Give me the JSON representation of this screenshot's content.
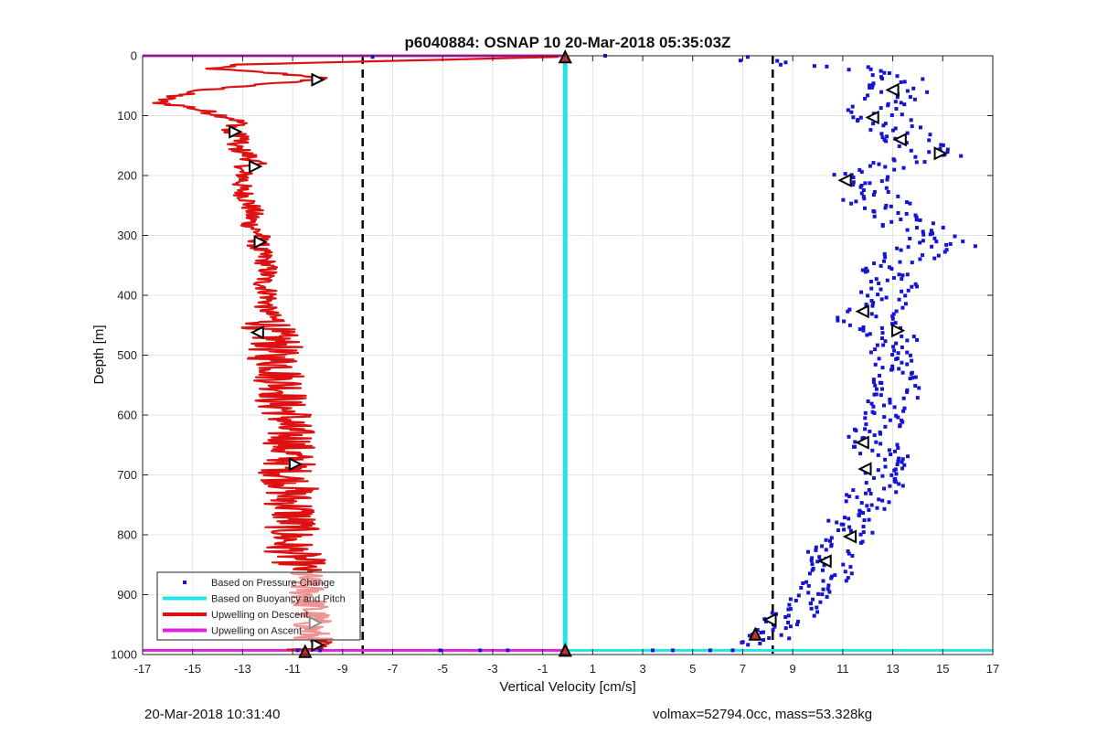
{
  "figure": {
    "footer_left": "20-Mar-2018 10:31:40",
    "footer_right": "volmax=52794.0cc, mass=53.328kg"
  },
  "chart_data": {
    "type": "scatter",
    "title": "p6040884: OSNAP 10 20-Mar-2018 05:35:03Z",
    "xlabel": "Vertical Velocity [cm/s]",
    "ylabel": "Depth [m]",
    "xlim": [
      -17,
      17
    ],
    "ylim": [
      0,
      1000
    ],
    "y_reversed": true,
    "grid": true,
    "legend_placement": "bottom-left",
    "x_ticks": [
      -17,
      -15,
      -13,
      -11,
      -9,
      -7,
      -5,
      -3,
      -1,
      1,
      3,
      5,
      7,
      9,
      11,
      13,
      15,
      17
    ],
    "y_ticks": [
      0,
      100,
      200,
      300,
      400,
      500,
      600,
      700,
      800,
      900,
      1000
    ],
    "colors": {
      "pressure": "#1414d2",
      "buoyancy": "#22e5e5",
      "descent": "#dd1111",
      "ascent": "#dd22dd",
      "grid": "#e3e3e3"
    },
    "legend": [
      {
        "label": "Based on Pressure Change",
        "style": "dot",
        "color": "#1414d2"
      },
      {
        "label": "Based on Buoyancy and Pitch",
        "style": "line",
        "color": "#22e5e5"
      },
      {
        "label": "Upwelling on Descent",
        "style": "line",
        "color": "#dd1111"
      },
      {
        "label": "Upwelling on Ascent",
        "style": "line",
        "color": "#dd22dd"
      }
    ],
    "vlines_dashed": [
      -8.2,
      8.2
    ],
    "buoyancy_x": -0.1,
    "horizontal_lines": [
      {
        "series": "ascent",
        "y": 0,
        "x": [
          -17,
          -0.1
        ]
      },
      {
        "series": "ascent",
        "y": 993,
        "x": [
          -17,
          -0.1
        ]
      },
      {
        "series": "buoyancy",
        "y": 993,
        "x": [
          -0.1,
          17
        ]
      }
    ],
    "descent_profile": {
      "depth": [
        2,
        10,
        15,
        22,
        30,
        36,
        42,
        50,
        60,
        70,
        78,
        85,
        95,
        105,
        115,
        125,
        135,
        150,
        165,
        180,
        190,
        200,
        220,
        240,
        260,
        280,
        300,
        320,
        340,
        360,
        380,
        400,
        420,
        440,
        460,
        480,
        500,
        520,
        540,
        560,
        580,
        600,
        620,
        640,
        660,
        680,
        700,
        720,
        740,
        760,
        780,
        800,
        820,
        840,
        860,
        880,
        900,
        920,
        940,
        960,
        980,
        993
      ],
      "velocity": [
        -0.4,
        -8.5,
        -13.5,
        -14.2,
        -11.5,
        -9.8,
        -10.4,
        -13.0,
        -15.0,
        -16.0,
        -16.4,
        -15.2,
        -14.3,
        -13.3,
        -13.1,
        -13.7,
        -12.9,
        -13.4,
        -12.8,
        -12.5,
        -13.2,
        -12.9,
        -13.1,
        -12.8,
        -12.6,
        -12.7,
        -12.3,
        -12.4,
        -12.1,
        -12.0,
        -12.2,
        -11.9,
        -12.1,
        -11.8,
        -12.0,
        -11.6,
        -11.9,
        -11.4,
        -11.5,
        -11.2,
        -11.6,
        -11.1,
        -11.3,
        -11.0,
        -11.2,
        -11.1,
        -11.3,
        -11.0,
        -11.2,
        -10.9,
        -11.0,
        -11.1,
        -11.2,
        -10.8,
        -10.6,
        -10.5,
        -10.4,
        -10.3,
        -10.2,
        -10.3,
        -10.1,
        -10.5
      ]
    },
    "descent_markers": [
      {
        "x": -10.0,
        "y": 40,
        "dir": "right"
      },
      {
        "x": -13.3,
        "y": 127,
        "dir": "right"
      },
      {
        "x": -12.5,
        "y": 185,
        "dir": "right"
      },
      {
        "x": -12.3,
        "y": 311,
        "dir": "right"
      },
      {
        "x": -12.4,
        "y": 462,
        "dir": "left"
      },
      {
        "x": -10.9,
        "y": 682,
        "dir": "right"
      },
      {
        "x": -10.1,
        "y": 947,
        "dir": "right"
      },
      {
        "x": -10.0,
        "y": 984,
        "dir": "right"
      },
      {
        "x": -10.5,
        "y": 995,
        "dir": "up"
      }
    ],
    "pressure_anchor_points": [
      {
        "x": 7.9,
        "y": 5
      },
      {
        "x": 8.6,
        "y": 12
      },
      {
        "x": 12.3,
        "y": 20
      },
      {
        "x": 13.2,
        "y": 40
      },
      {
        "x": 13.4,
        "y": 60
      },
      {
        "x": 12.4,
        "y": 95
      },
      {
        "x": 12.8,
        "y": 115
      },
      {
        "x": 13.6,
        "y": 145
      },
      {
        "x": 14.9,
        "y": 165
      },
      {
        "x": 13.0,
        "y": 185
      },
      {
        "x": 11.2,
        "y": 210
      },
      {
        "x": 12.2,
        "y": 240
      },
      {
        "x": 13.5,
        "y": 270
      },
      {
        "x": 14.6,
        "y": 310
      },
      {
        "x": 13.2,
        "y": 350
      },
      {
        "x": 12.4,
        "y": 410
      },
      {
        "x": 11.8,
        "y": 440
      },
      {
        "x": 13.1,
        "y": 470
      },
      {
        "x": 12.9,
        "y": 510
      },
      {
        "x": 13.3,
        "y": 560
      },
      {
        "x": 12.6,
        "y": 600
      },
      {
        "x": 12.0,
        "y": 640
      },
      {
        "x": 12.8,
        "y": 680
      },
      {
        "x": 12.4,
        "y": 720
      },
      {
        "x": 11.6,
        "y": 760
      },
      {
        "x": 11.2,
        "y": 800
      },
      {
        "x": 10.4,
        "y": 830
      },
      {
        "x": 10.6,
        "y": 865
      },
      {
        "x": 9.8,
        "y": 895
      },
      {
        "x": 9.2,
        "y": 925
      },
      {
        "x": 8.3,
        "y": 955
      },
      {
        "x": 7.9,
        "y": 980
      }
    ],
    "pressure_isolated_points": [
      {
        "x": 1.5,
        "y": 0
      },
      {
        "x": -7.8,
        "y": 2
      },
      {
        "x": 7.2,
        "y": 2
      },
      {
        "x": 16.3,
        "y": 318
      },
      {
        "x": 15.8,
        "y": 310
      },
      {
        "x": -10.8,
        "y": 993
      },
      {
        "x": -9.9,
        "y": 993
      },
      {
        "x": -5.1,
        "y": 993
      },
      {
        "x": -3.5,
        "y": 993
      },
      {
        "x": -2.4,
        "y": 993
      },
      {
        "x": 3.4,
        "y": 993
      },
      {
        "x": 4.2,
        "y": 993
      },
      {
        "x": 5.7,
        "y": 993
      },
      {
        "x": 6.6,
        "y": 993
      }
    ],
    "ascent_markers": [
      {
        "x": -0.1,
        "y": 2,
        "dir": "up"
      },
      {
        "x": 13.0,
        "y": 57,
        "dir": "left"
      },
      {
        "x": 12.2,
        "y": 103,
        "dir": "left"
      },
      {
        "x": 13.3,
        "y": 140,
        "dir": "left"
      },
      {
        "x": 14.9,
        "y": 163,
        "dir": "right"
      },
      {
        "x": 11.1,
        "y": 208,
        "dir": "left"
      },
      {
        "x": 11.8,
        "y": 427,
        "dir": "left"
      },
      {
        "x": 13.2,
        "y": 459,
        "dir": "right"
      },
      {
        "x": 11.8,
        "y": 646,
        "dir": "left"
      },
      {
        "x": 11.9,
        "y": 690,
        "dir": "left"
      },
      {
        "x": 11.3,
        "y": 803,
        "dir": "left"
      },
      {
        "x": 10.3,
        "y": 844,
        "dir": "left"
      },
      {
        "x": 8.1,
        "y": 942,
        "dir": "left"
      },
      {
        "x": 7.5,
        "y": 966,
        "dir": "up"
      },
      {
        "x": -0.1,
        "y": 993,
        "dir": "up"
      }
    ]
  }
}
